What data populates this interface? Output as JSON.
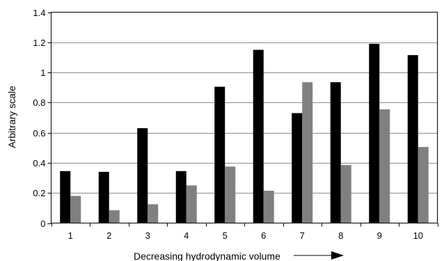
{
  "chart_data": {
    "type": "bar",
    "title": "",
    "xlabel": "Decreasing hydrodynamic volume",
    "ylabel": "Arbitrary scale",
    "ylim": [
      0,
      1.4
    ],
    "yticks": [
      "0",
      "0.2",
      "0.4",
      "0.6",
      "0.8",
      "1",
      "1.2",
      "1.4"
    ],
    "categories": [
      "1",
      "2",
      "3",
      "4",
      "5",
      "6",
      "7",
      "8",
      "9",
      "10"
    ],
    "grid": true,
    "legend": "none",
    "series": [
      {
        "color": "#000000",
        "values": [
          0.345,
          0.34,
          0.63,
          0.345,
          0.905,
          1.15,
          0.73,
          0.935,
          1.19,
          1.115
        ]
      },
      {
        "color": "#808080",
        "values": [
          0.18,
          0.085,
          0.125,
          0.25,
          0.375,
          0.215,
          0.935,
          0.385,
          0.755,
          0.505
        ]
      }
    ],
    "xlabel_arrow": "arrow-right-icon"
  }
}
